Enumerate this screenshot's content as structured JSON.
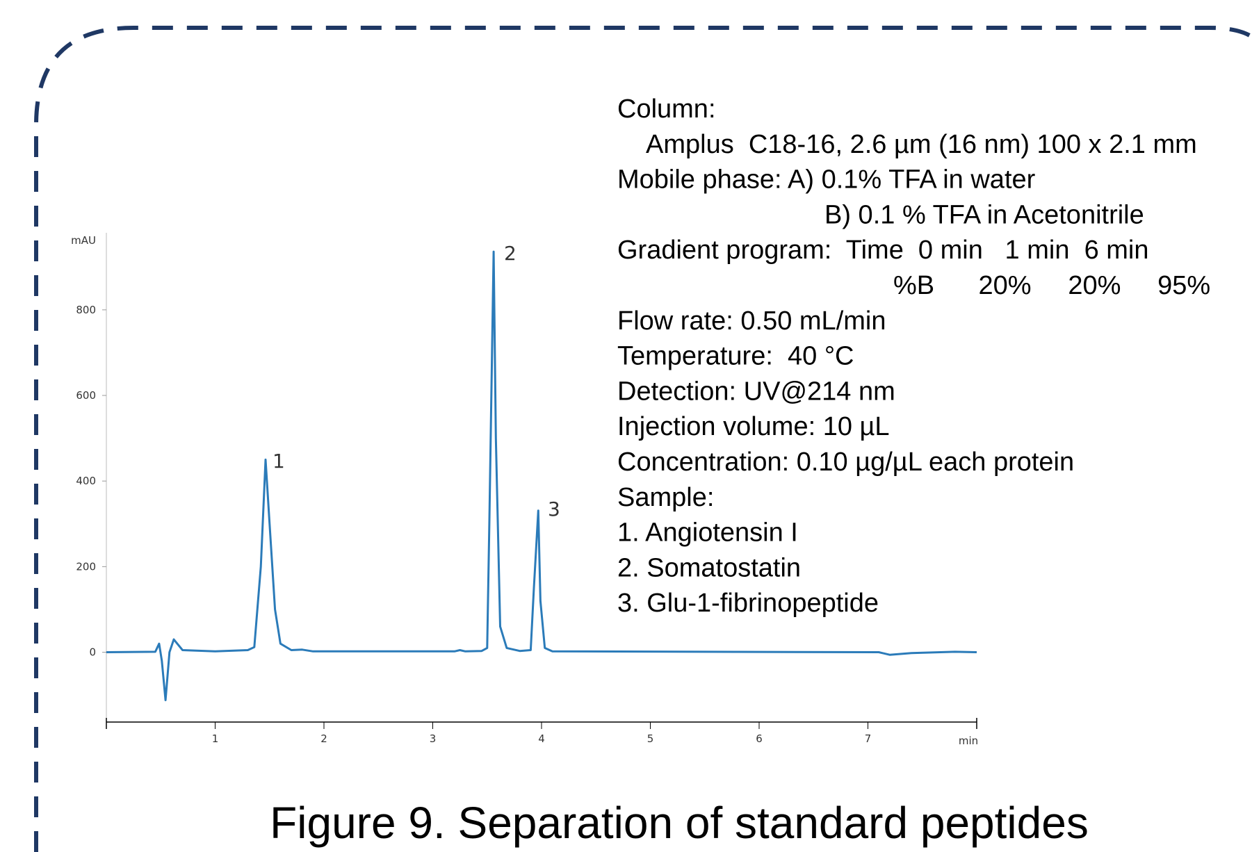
{
  "chart_data": {
    "type": "line",
    "title": "Figure 9. Separation of standard peptides",
    "y_label": "mAU",
    "x_label": "min",
    "xlim": [
      0,
      8
    ],
    "xticks": [
      1,
      2,
      3,
      4,
      5,
      6,
      7
    ],
    "ylim": [
      -155,
      980
    ],
    "yticks": [
      0,
      200,
      400,
      600,
      800
    ],
    "series": [
      {
        "color": "#2b7bb9",
        "x": [
          0,
          0.45,
          0.485,
          0.51,
          0.544,
          0.58,
          0.62,
          0.7,
          1.0,
          1.3,
          1.36,
          1.42,
          1.463,
          1.5,
          1.55,
          1.6,
          1.7,
          1.8,
          1.9,
          3.2,
          3.25,
          3.3,
          3.45,
          3.5,
          3.52,
          3.56,
          3.58,
          3.62,
          3.68,
          3.8,
          3.9,
          3.93,
          3.97,
          3.99,
          4.03,
          4.1,
          7.1,
          7.2,
          7.4,
          7.8,
          8
        ],
        "values": [
          0,
          1,
          20,
          -20,
          -112,
          0,
          30,
          5,
          2,
          5,
          12,
          200,
          450,
          300,
          100,
          20,
          5,
          6,
          2,
          2,
          5,
          2,
          3,
          10,
          300,
          936,
          500,
          60,
          10,
          3,
          5,
          150,
          331,
          120,
          10,
          2,
          0,
          -6,
          -2,
          1,
          0
        ]
      }
    ],
    "annotations": [
      "1",
      "2",
      "3"
    ],
    "conditions": [
      "Column:",
      "  Amplus  C18-16, 2.6 µm (16 nm) 100 x 2.1 mm",
      "Mobile phase: A) 0.1% TFA in water",
      "B) 0.1 % TFA in Acetonitrile",
      "Gradient program:  Time  0 min   1 min  6 min",
      "%B      20%     20%     95%",
      "Flow rate: 0.50 mL/min",
      "Temperature:  40 °C",
      "Detection: UV@214 nm",
      "Injection volume: 10 µL",
      "Concentration: 0.10 µg/µL each protein",
      "Sample:",
      "1. Angiotensin I",
      "2. Somatostatin",
      "3. Glu-1-fibrinopeptide"
    ]
  }
}
